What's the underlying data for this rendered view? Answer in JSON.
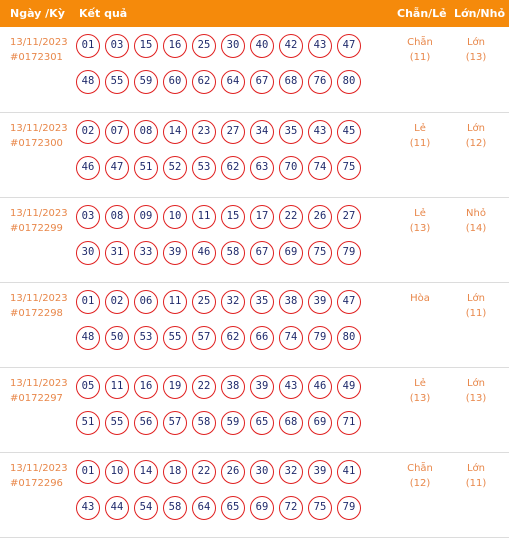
{
  "header": {
    "date_label": "Ngày /Kỳ",
    "result_label": "Kết quả",
    "parity_label": "Chẵn/Lẻ",
    "size_label": "Lớn/Nhỏ"
  },
  "draws": [
    {
      "date": "13/11/2023",
      "draw_id": "#0172301",
      "numbers_row1": [
        "01",
        "03",
        "15",
        "16",
        "25",
        "30",
        "40",
        "42",
        "43",
        "47"
      ],
      "numbers_row2": [
        "48",
        "55",
        "59",
        "60",
        "62",
        "64",
        "67",
        "68",
        "76",
        "80"
      ],
      "parity": "Chẵn",
      "parity_count": "(11)",
      "size": "Lớn",
      "size_count": "(13)"
    },
    {
      "date": "13/11/2023",
      "draw_id": "#0172300",
      "numbers_row1": [
        "02",
        "07",
        "08",
        "14",
        "23",
        "27",
        "34",
        "35",
        "43",
        "45"
      ],
      "numbers_row2": [
        "46",
        "47",
        "51",
        "52",
        "53",
        "62",
        "63",
        "70",
        "74",
        "75"
      ],
      "parity": "Lẻ",
      "parity_count": "(11)",
      "size": "Lớn",
      "size_count": "(12)"
    },
    {
      "date": "13/11/2023",
      "draw_id": "#0172299",
      "numbers_row1": [
        "03",
        "08",
        "09",
        "10",
        "11",
        "15",
        "17",
        "22",
        "26",
        "27"
      ],
      "numbers_row2": [
        "30",
        "31",
        "33",
        "39",
        "46",
        "58",
        "67",
        "69",
        "75",
        "79"
      ],
      "parity": "Lẻ",
      "parity_count": "(13)",
      "size": "Nhỏ",
      "size_count": "(14)"
    },
    {
      "date": "13/11/2023",
      "draw_id": "#0172298",
      "numbers_row1": [
        "01",
        "02",
        "06",
        "11",
        "25",
        "32",
        "35",
        "38",
        "39",
        "47"
      ],
      "numbers_row2": [
        "48",
        "50",
        "53",
        "55",
        "57",
        "62",
        "66",
        "74",
        "79",
        "80"
      ],
      "parity": "Hòa",
      "parity_count": "",
      "size": "Lớn",
      "size_count": "(11)"
    },
    {
      "date": "13/11/2023",
      "draw_id": "#0172297",
      "numbers_row1": [
        "05",
        "11",
        "16",
        "19",
        "22",
        "38",
        "39",
        "43",
        "46",
        "49"
      ],
      "numbers_row2": [
        "51",
        "55",
        "56",
        "57",
        "58",
        "59",
        "65",
        "68",
        "69",
        "71"
      ],
      "parity": "Lẻ",
      "parity_count": "(13)",
      "size": "Lớn",
      "size_count": "(13)"
    },
    {
      "date": "13/11/2023",
      "draw_id": "#0172296",
      "numbers_row1": [
        "01",
        "10",
        "14",
        "18",
        "22",
        "26",
        "30",
        "32",
        "39",
        "41"
      ],
      "numbers_row2": [
        "43",
        "44",
        "54",
        "58",
        "64",
        "65",
        "69",
        "72",
        "75",
        "79"
      ],
      "parity": "Chẵn",
      "parity_count": "(12)",
      "size": "Lớn",
      "size_count": "(11)"
    }
  ]
}
